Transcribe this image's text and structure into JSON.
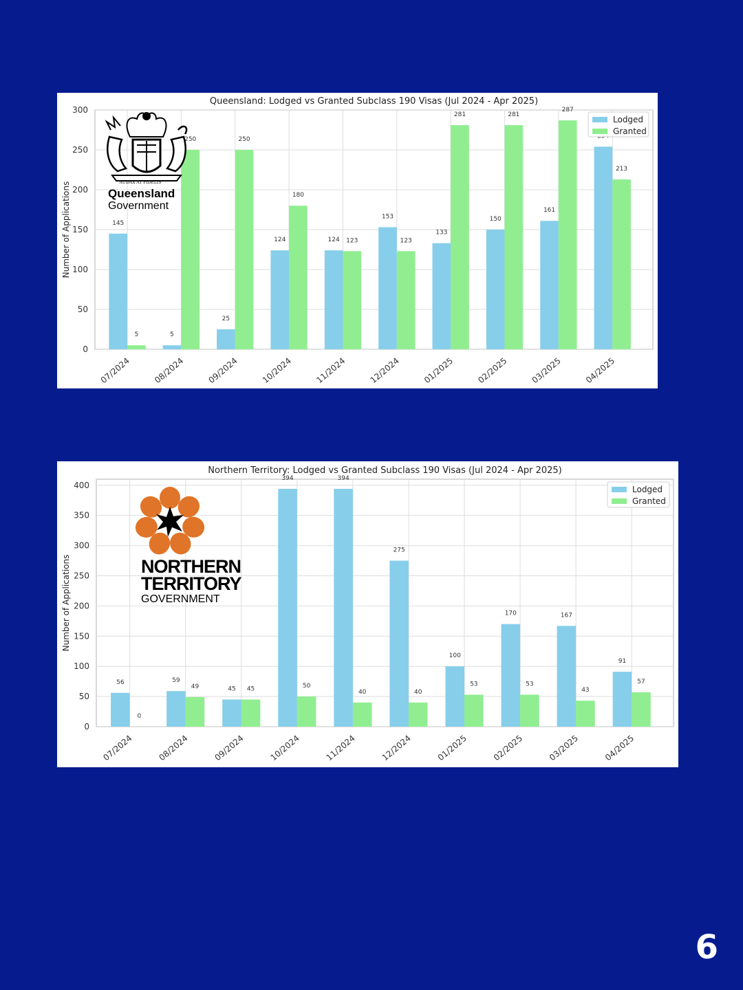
{
  "page_number": "6",
  "colors": {
    "background": "#061c8e",
    "lodged": "#87ceeb",
    "granted": "#90ee90"
  },
  "qld_logo": {
    "name": "Queensland",
    "subtitle": "Government",
    "motto": "AUDAX AT FIDELIS",
    "icon": "queensland-coat-of-arms-icon"
  },
  "nt_logo": {
    "line1": "NORTHERN",
    "line2": "TERRITORY",
    "line3": "GOVERNMENT",
    "icon": "nt-desert-rose-icon"
  },
  "chart_data": [
    {
      "type": "bar",
      "title": "Queensland: Lodged vs Granted Subclass 190 Visas (Jul 2024 - Apr 2025)",
      "xlabel": "",
      "ylabel": "Number of Applications",
      "ylim": [
        0,
        300
      ],
      "yticks": [
        0,
        50,
        100,
        150,
        200,
        250,
        300
      ],
      "categories": [
        "07/2024",
        "08/2024",
        "09/2024",
        "10/2024",
        "11/2024",
        "12/2024",
        "01/2025",
        "02/2025",
        "03/2025",
        "04/2025"
      ],
      "series": [
        {
          "name": "Lodged",
          "values": [
            145,
            5,
            25,
            124,
            124,
            153,
            133,
            150,
            161,
            254
          ]
        },
        {
          "name": "Granted",
          "values": [
            5,
            250,
            250,
            180,
            123,
            123,
            281,
            281,
            287,
            213
          ]
        }
      ],
      "legend": "top-right",
      "grid": true
    },
    {
      "type": "bar",
      "title": "Northern Territory: Lodged vs Granted Subclass 190 Visas (Jul 2024 - Apr 2025)",
      "xlabel": "",
      "ylabel": "Number of Applications",
      "ylim": [
        0,
        410
      ],
      "yticks": [
        0,
        50,
        100,
        150,
        200,
        250,
        300,
        350,
        400
      ],
      "categories": [
        "07/2024",
        "08/2024",
        "09/2024",
        "10/2024",
        "11/2024",
        "12/2024",
        "01/2025",
        "02/2025",
        "03/2025",
        "04/2025"
      ],
      "series": [
        {
          "name": "Lodged",
          "values": [
            56,
            59,
            45,
            394,
            394,
            275,
            100,
            170,
            167,
            91
          ]
        },
        {
          "name": "Granted",
          "values": [
            0,
            49,
            45,
            50,
            40,
            40,
            53,
            53,
            43,
            57
          ]
        }
      ],
      "legend": "top-right",
      "grid": true
    }
  ]
}
